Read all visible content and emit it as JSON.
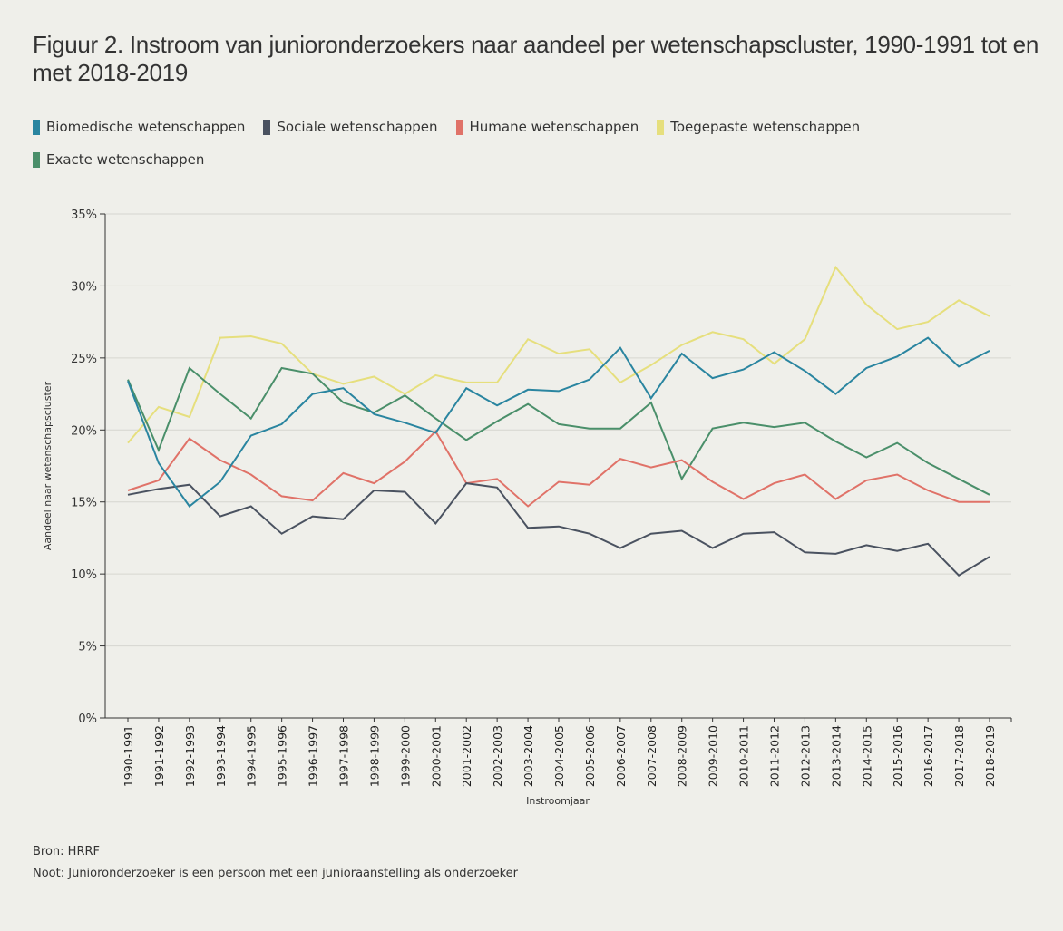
{
  "title": "Figuur 2. Instroom van junioronderzoekers naar aandeel per wetenschapscluster, 1990-1991 tot en met 2018-2019",
  "legend": [
    {
      "label": "Biomedische wetenschappen",
      "color": "#2a85a0"
    },
    {
      "label": "Sociale wetenschappen",
      "color": "#4a5260"
    },
    {
      "label": "Humane wetenschappen",
      "color": "#e07268"
    },
    {
      "label": "Toegepaste wetenschappen",
      "color": "#e6df7d"
    },
    {
      "label": "Exacte wetenschappen",
      "color": "#4a8f6a"
    }
  ],
  "footer": {
    "source": "Bron: HRRF",
    "note": "Noot: Junioronderzoeker is een persoon met een junioraanstelling als onderzoeker"
  },
  "chart_data": {
    "type": "line",
    "title": "Figuur 2. Instroom van junioronderzoekers naar aandeel per wetenschapscluster, 1990-1991 tot en met 2018-2019",
    "xlabel": "Instroomjaar",
    "ylabel": "Aandeel naar wetenschapscluster",
    "ylim": [
      0,
      35
    ],
    "yticks": [
      0,
      5,
      10,
      15,
      20,
      25,
      30,
      35
    ],
    "ytick_labels": [
      "0%",
      "5%",
      "10%",
      "15%",
      "20%",
      "25%",
      "30%",
      "35%"
    ],
    "grid": true,
    "legend_position": "top-left",
    "categories": [
      "1990-1991",
      "1991-1992",
      "1992-1993",
      "1993-1994",
      "1994-1995",
      "1995-1996",
      "1996-1997",
      "1997-1998",
      "1998-1999",
      "1999-2000",
      "2000-2001",
      "2001-2002",
      "2002-2003",
      "2003-2004",
      "2004-2005",
      "2005-2006",
      "2006-2007",
      "2007-2008",
      "2008-2009",
      "2009-2010",
      "2010-2011",
      "2011-2012",
      "2012-2013",
      "2013-2014",
      "2014-2015",
      "2015-2016",
      "2016-2017",
      "2017-2018",
      "2018-2019"
    ],
    "series": [
      {
        "name": "Toegepaste wetenschappen",
        "color": "#e6df7d",
        "values": [
          19.1,
          21.6,
          20.9,
          26.4,
          26.5,
          26.0,
          23.9,
          23.2,
          23.7,
          22.5,
          23.8,
          23.3,
          23.3,
          26.3,
          25.3,
          25.6,
          23.3,
          24.5,
          25.9,
          26.8,
          26.3,
          24.6,
          26.3,
          31.3,
          28.7,
          27.0,
          27.5,
          29.0,
          27.9
        ]
      },
      {
        "name": "Exacte wetenschappen",
        "color": "#4a8f6a",
        "values": [
          23.5,
          18.6,
          24.3,
          22.5,
          20.8,
          24.3,
          23.9,
          21.9,
          21.2,
          22.4,
          20.8,
          19.3,
          20.6,
          21.8,
          20.4,
          20.1,
          20.1,
          21.9,
          16.6,
          20.1,
          20.5,
          20.2,
          20.5,
          19.2,
          18.1,
          19.1,
          17.7,
          16.6,
          15.5
        ]
      },
      {
        "name": "Humane wetenschappen",
        "color": "#e07268",
        "values": [
          15.8,
          16.5,
          19.4,
          17.9,
          16.9,
          15.4,
          15.1,
          17.0,
          16.3,
          17.8,
          19.9,
          16.3,
          16.6,
          14.7,
          16.4,
          16.2,
          18.0,
          17.4,
          17.9,
          16.4,
          15.2,
          16.3,
          16.9,
          15.2,
          16.5,
          16.9,
          15.8,
          15.0,
          15.0
        ]
      },
      {
        "name": "Sociale wetenschappen",
        "color": "#4a5260",
        "values": [
          15.5,
          15.9,
          16.2,
          14.0,
          14.7,
          12.8,
          14.0,
          13.8,
          15.8,
          15.7,
          13.5,
          16.3,
          16.0,
          13.2,
          13.3,
          12.8,
          11.8,
          12.8,
          13.0,
          11.8,
          12.8,
          12.9,
          11.5,
          11.4,
          12.0,
          11.6,
          12.1,
          9.9,
          11.2
        ]
      },
      {
        "name": "Biomedische wetenschappen",
        "color": "#2a85a0",
        "values": [
          23.4,
          17.7,
          14.7,
          16.4,
          19.6,
          20.4,
          22.5,
          22.9,
          21.1,
          20.5,
          19.8,
          22.9,
          21.7,
          22.8,
          22.7,
          23.5,
          25.7,
          22.2,
          25.3,
          23.6,
          24.2,
          25.4,
          24.1,
          22.5,
          24.3,
          25.1,
          26.4,
          24.4,
          25.5
        ]
      }
    ]
  }
}
